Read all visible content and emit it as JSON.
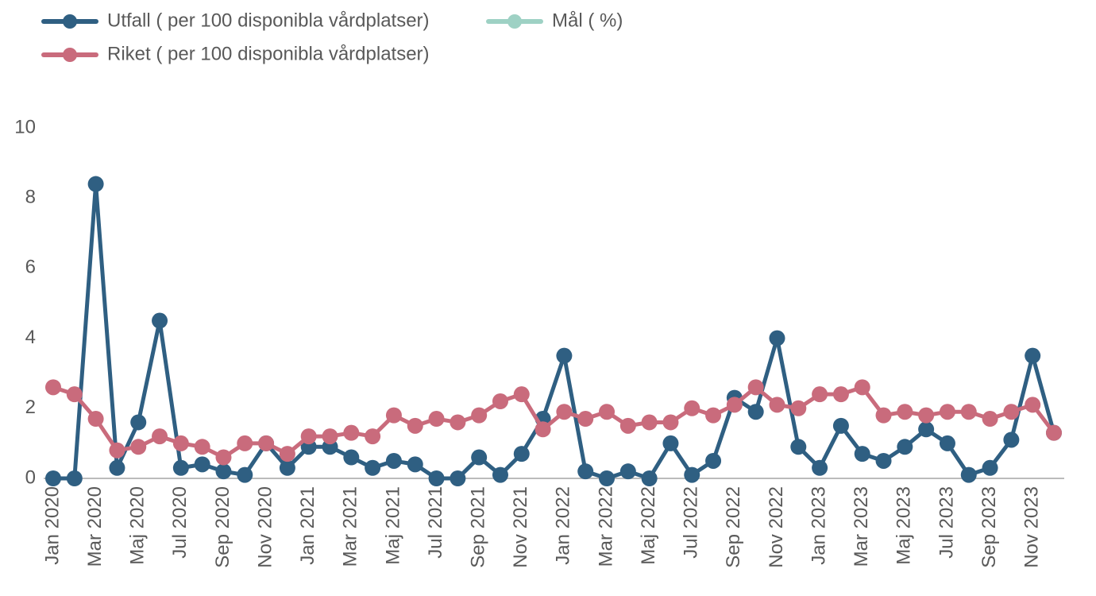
{
  "chart_data": {
    "type": "line",
    "categories": [
      "Jan 2020",
      null,
      "Mar 2020",
      null,
      "Maj 2020",
      null,
      "Jul 2020",
      null,
      "Sep 2020",
      null,
      "Nov 2020",
      null,
      "Jan 2021",
      null,
      "Mar 2021",
      null,
      "Maj 2021",
      null,
      "Jul 2021",
      null,
      "Sep 2021",
      null,
      "Nov 2021",
      null,
      "Jan 2022",
      null,
      "Mar 2022",
      null,
      "Maj 2022",
      null,
      "Jul 2022",
      null,
      "Sep 2022",
      null,
      "Nov 2022",
      null,
      "Jan 2023",
      null,
      "Mar 2023",
      null,
      "Maj 2023",
      null,
      "Jul 2023",
      null,
      "Sep 2023",
      null,
      "Nov 2023",
      null
    ],
    "series": [
      {
        "name": "Utfall ( per 100 disponibla vårdplatser)",
        "color": "#2f5f82",
        "values": [
          0,
          0,
          8.4,
          0.3,
          1.6,
          4.5,
          0.3,
          0.4,
          0.2,
          0.1,
          1.0,
          0.3,
          0.9,
          0.9,
          0.6,
          0.3,
          0.5,
          0.4,
          0,
          0,
          0.6,
          0.1,
          0.7,
          1.7,
          3.5,
          0.2,
          0,
          0.2,
          0,
          1.0,
          0.1,
          0.5,
          2.3,
          1.9,
          4.0,
          0.9,
          0.3,
          1.5,
          0.7,
          0.5,
          0.9,
          1.4,
          1.0,
          0.1,
          0.3,
          1.1,
          3.5,
          1.3
        ]
      },
      {
        "name": "Mål ( %)",
        "color": "#9ed1c4",
        "values": [
          null,
          null,
          null,
          null,
          null,
          null,
          null,
          null,
          null,
          null,
          null,
          null,
          null,
          null,
          null,
          null,
          null,
          null,
          null,
          null,
          null,
          null,
          null,
          null,
          null,
          null,
          null,
          null,
          null,
          null,
          null,
          null,
          null,
          null,
          null,
          null,
          null,
          null,
          null,
          null,
          null,
          null,
          null,
          null,
          null,
          null,
          null,
          null
        ]
      },
      {
        "name": "Riket ( per 100 disponibla vårdplatser)",
        "color": "#c96b7c",
        "values": [
          2.6,
          2.4,
          1.7,
          0.8,
          0.9,
          1.2,
          1.0,
          0.9,
          0.6,
          1.0,
          1.0,
          0.7,
          1.2,
          1.2,
          1.3,
          1.2,
          1.8,
          1.5,
          1.7,
          1.6,
          1.8,
          2.2,
          2.4,
          1.4,
          1.9,
          1.7,
          1.9,
          1.5,
          1.6,
          1.6,
          2.0,
          1.8,
          2.1,
          2.6,
          2.1,
          2.0,
          2.4,
          2.4,
          2.6,
          1.8,
          1.9,
          1.8,
          1.9,
          1.9,
          1.7,
          1.9,
          2.1,
          1.3
        ]
      }
    ],
    "ylim": [
      0,
      10
    ],
    "yticks": [
      0,
      2,
      4,
      6,
      8,
      10
    ],
    "grid": false,
    "legend": "top-left"
  }
}
